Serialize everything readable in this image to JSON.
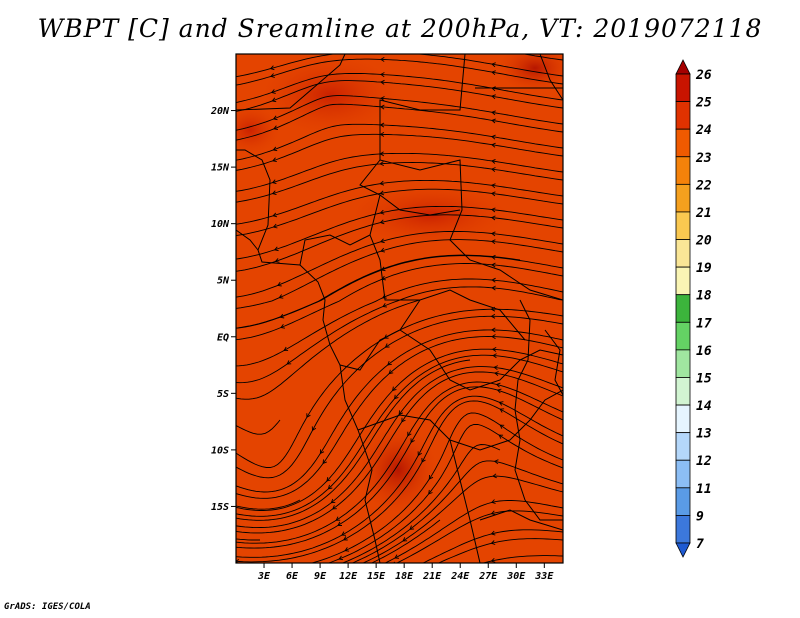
{
  "title": "WBPT [C] and Sreamline at 200hPa, VT: 2019072118",
  "credit": "GrADS: IGES/COLA",
  "map": {
    "lon_range": [
      0,
      35
    ],
    "lat_range": [
      -20,
      25
    ],
    "lat_ticks": [
      {
        "value": 20,
        "label": "20N"
      },
      {
        "value": 15,
        "label": "15N"
      },
      {
        "value": 10,
        "label": "10N"
      },
      {
        "value": 5,
        "label": "5N"
      },
      {
        "value": 0,
        "label": "EQ"
      },
      {
        "value": -5,
        "label": "5S"
      },
      {
        "value": -10,
        "label": "10S"
      },
      {
        "value": -15,
        "label": "15S"
      }
    ],
    "lon_ticks": [
      {
        "value": 3,
        "label": "3E"
      },
      {
        "value": 6,
        "label": "6E"
      },
      {
        "value": 9,
        "label": "9E"
      },
      {
        "value": 12,
        "label": "12E"
      },
      {
        "value": 15,
        "label": "15E"
      },
      {
        "value": 18,
        "label": "18E"
      },
      {
        "value": 21,
        "label": "21E"
      },
      {
        "value": 24,
        "label": "24E"
      },
      {
        "value": 27,
        "label": "27E"
      },
      {
        "value": 30,
        "label": "30E"
      },
      {
        "value": 33,
        "label": "33E"
      }
    ]
  },
  "colorbar": {
    "labels": [
      "26",
      "25",
      "24",
      "23",
      "22",
      "21",
      "20",
      "19",
      "18",
      "17",
      "16",
      "15",
      "14",
      "13",
      "12",
      "11",
      "9",
      "7"
    ],
    "colors": [
      "#a50000",
      "#c81400",
      "#e03200",
      "#f05a00",
      "#f5820a",
      "#f5a01e",
      "#fac850",
      "#fae696",
      "#faf5b4",
      "#3cb43c",
      "#64d264",
      "#a0e6a0",
      "#d2f5d2",
      "#e6f5ff",
      "#b4d7fa",
      "#8cbef5",
      "#5a9be6",
      "#3c78dc",
      "#1e5ad2"
    ]
  }
}
